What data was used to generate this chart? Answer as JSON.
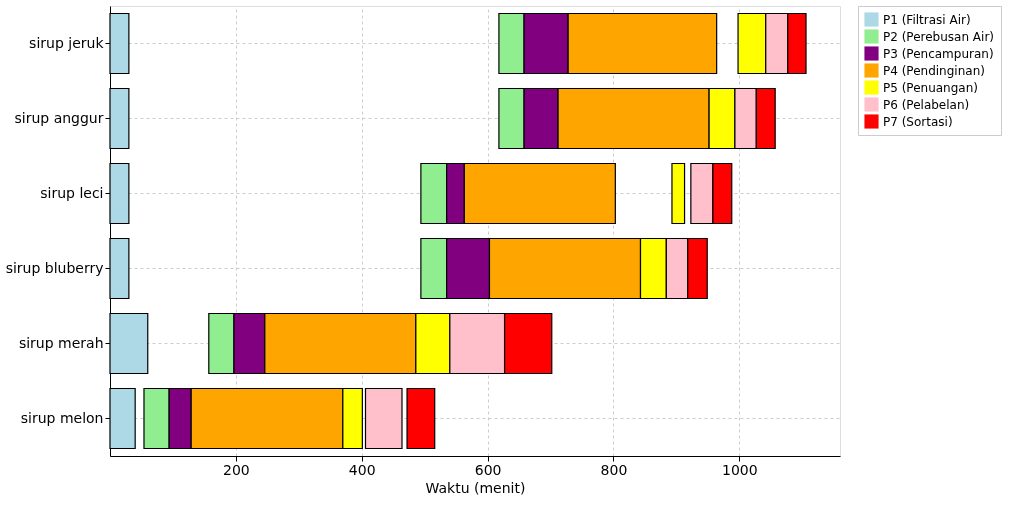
{
  "chart_data": {
    "type": "bar",
    "orientation": "horizontal",
    "xlabel": "Waktu (menit)",
    "categories": [
      "sirup jeruk",
      "sirup anggur",
      "sirup leci",
      "sirup bluberry",
      "sirup merah",
      "sirup melon"
    ],
    "xlim": [
      0,
      1160
    ],
    "xticks": [
      200,
      400,
      600,
      800,
      1000
    ],
    "grid": true,
    "legend": "top right",
    "series": [
      {
        "name": "P1 (Filtrasi Air)",
        "color": "#add8e6",
        "base": [
          0,
          0,
          0,
          0,
          0,
          0
        ],
        "values": [
          30,
          30,
          30,
          30,
          60,
          40
        ]
      },
      {
        "name": "P2 (Perebusan Air)",
        "color": "#90ee90",
        "base": [
          618,
          618,
          494,
          494,
          157,
          54
        ],
        "values": [
          40,
          40,
          41,
          41,
          40,
          40
        ]
      },
      {
        "name": "P3 (Pencampuran)",
        "color": "#800080",
        "base": [
          658,
          658,
          535,
          535,
          197,
          94
        ],
        "values": [
          70,
          54,
          28,
          68,
          49,
          35
        ]
      },
      {
        "name": "P4 (Pendinginan)",
        "color": "#ffa500",
        "base": [
          728,
          712,
          563,
          603,
          246,
          129
        ],
        "values": [
          236,
          240,
          240,
          240,
          240,
          241
        ]
      },
      {
        "name": "P5 (Penuangan)",
        "color": "#ffff00",
        "base": [
          998,
          952,
          893,
          843,
          486,
          370
        ],
        "values": [
          44,
          41,
          20,
          41,
          54,
          31
        ]
      },
      {
        "name": "P6 (Pelabelan)",
        "color": "#ffc0cb",
        "base": [
          1042,
          993,
          923,
          884,
          540,
          406
        ],
        "values": [
          35,
          34,
          35,
          34,
          87,
          58
        ]
      },
      {
        "name": "P7 (Sortasi)",
        "color": "#ff0000",
        "base": [
          1077,
          1027,
          958,
          918,
          627,
          472
        ],
        "values": [
          29,
          30,
          30,
          31,
          75,
          44
        ]
      }
    ]
  }
}
